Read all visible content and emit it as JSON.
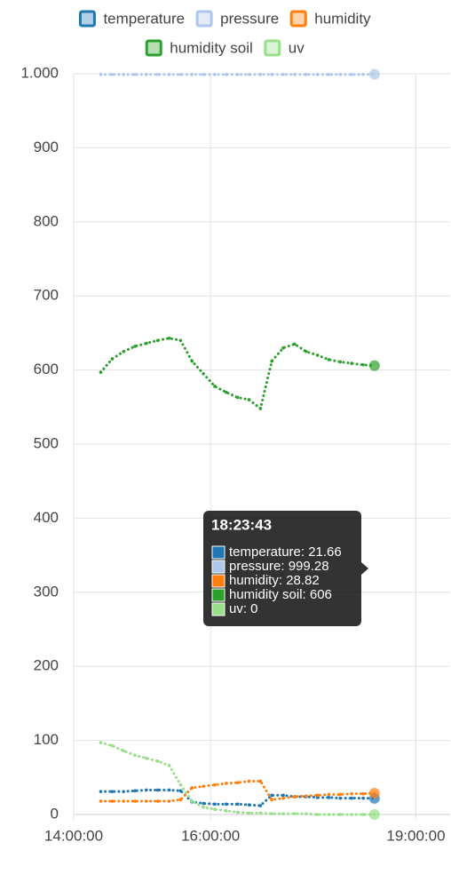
{
  "chart_data": {
    "type": "line",
    "x": [
      "14:23:43",
      "14:33:43",
      "14:43:43",
      "14:53:43",
      "15:03:43",
      "15:13:43",
      "15:23:43",
      "15:33:43",
      "15:43:43",
      "15:53:43",
      "16:03:43",
      "16:13:43",
      "16:23:43",
      "16:33:43",
      "16:43:43",
      "16:53:43",
      "17:03:43",
      "17:13:43",
      "17:23:43",
      "17:33:43",
      "17:43:43",
      "17:53:43",
      "18:03:43",
      "18:13:43",
      "18:23:43"
    ],
    "series": [
      {
        "name": "temperature",
        "color": "#1f77b4",
        "values": [
          31,
          31,
          31,
          32,
          33,
          33,
          33,
          32,
          17,
          15,
          14,
          14,
          14,
          13,
          12,
          26,
          26,
          24,
          24,
          23,
          23,
          22,
          22,
          22,
          21.66
        ]
      },
      {
        "name": "pressure",
        "color": "#aec7e8",
        "values": [
          999,
          999,
          999,
          999,
          999,
          999,
          999,
          999,
          999,
          999,
          999,
          999,
          999,
          999,
          999,
          999,
          999,
          999,
          999,
          999,
          999,
          999,
          999,
          999,
          999.28
        ]
      },
      {
        "name": "humidity",
        "color": "#ff7f0e",
        "values": [
          18,
          18,
          18,
          18,
          18,
          18,
          18,
          20,
          36,
          38,
          40,
          42,
          43,
          45,
          45,
          20,
          22,
          24,
          25,
          26,
          27,
          27,
          28,
          28,
          28.82
        ]
      },
      {
        "name": "humidity soil",
        "color": "#2ca02c",
        "values": [
          597,
          615,
          625,
          632,
          636,
          640,
          643,
          640,
          612,
          595,
          578,
          570,
          563,
          560,
          548,
          612,
          630,
          635,
          625,
          620,
          614,
          611,
          609,
          607,
          606
        ]
      },
      {
        "name": "uv",
        "color": "#98df8a",
        "values": [
          97,
          93,
          86,
          80,
          76,
          72,
          66,
          40,
          18,
          10,
          7,
          5,
          3,
          2,
          2,
          1,
          1,
          1,
          1,
          0,
          0,
          0,
          0,
          0,
          0
        ]
      }
    ],
    "xlim": [
      "14:00:00",
      "19:30:00"
    ],
    "xticks": [
      "14:00:00",
      "16:00:00",
      "19:00:00"
    ],
    "ylim": [
      0,
      1000
    ],
    "yticks": [
      0,
      100,
      200,
      300,
      400,
      500,
      600,
      700,
      800,
      900,
      {
        "value": 1000,
        "label": "1.000"
      }
    ],
    "grid": true,
    "legend": "top",
    "tooltip": {
      "title": "18:23:43",
      "items": [
        "temperature: 21.66",
        "pressure: 999.28",
        "humidity: 28.82",
        "humidity soil: 606",
        "uv: 0"
      ]
    }
  }
}
